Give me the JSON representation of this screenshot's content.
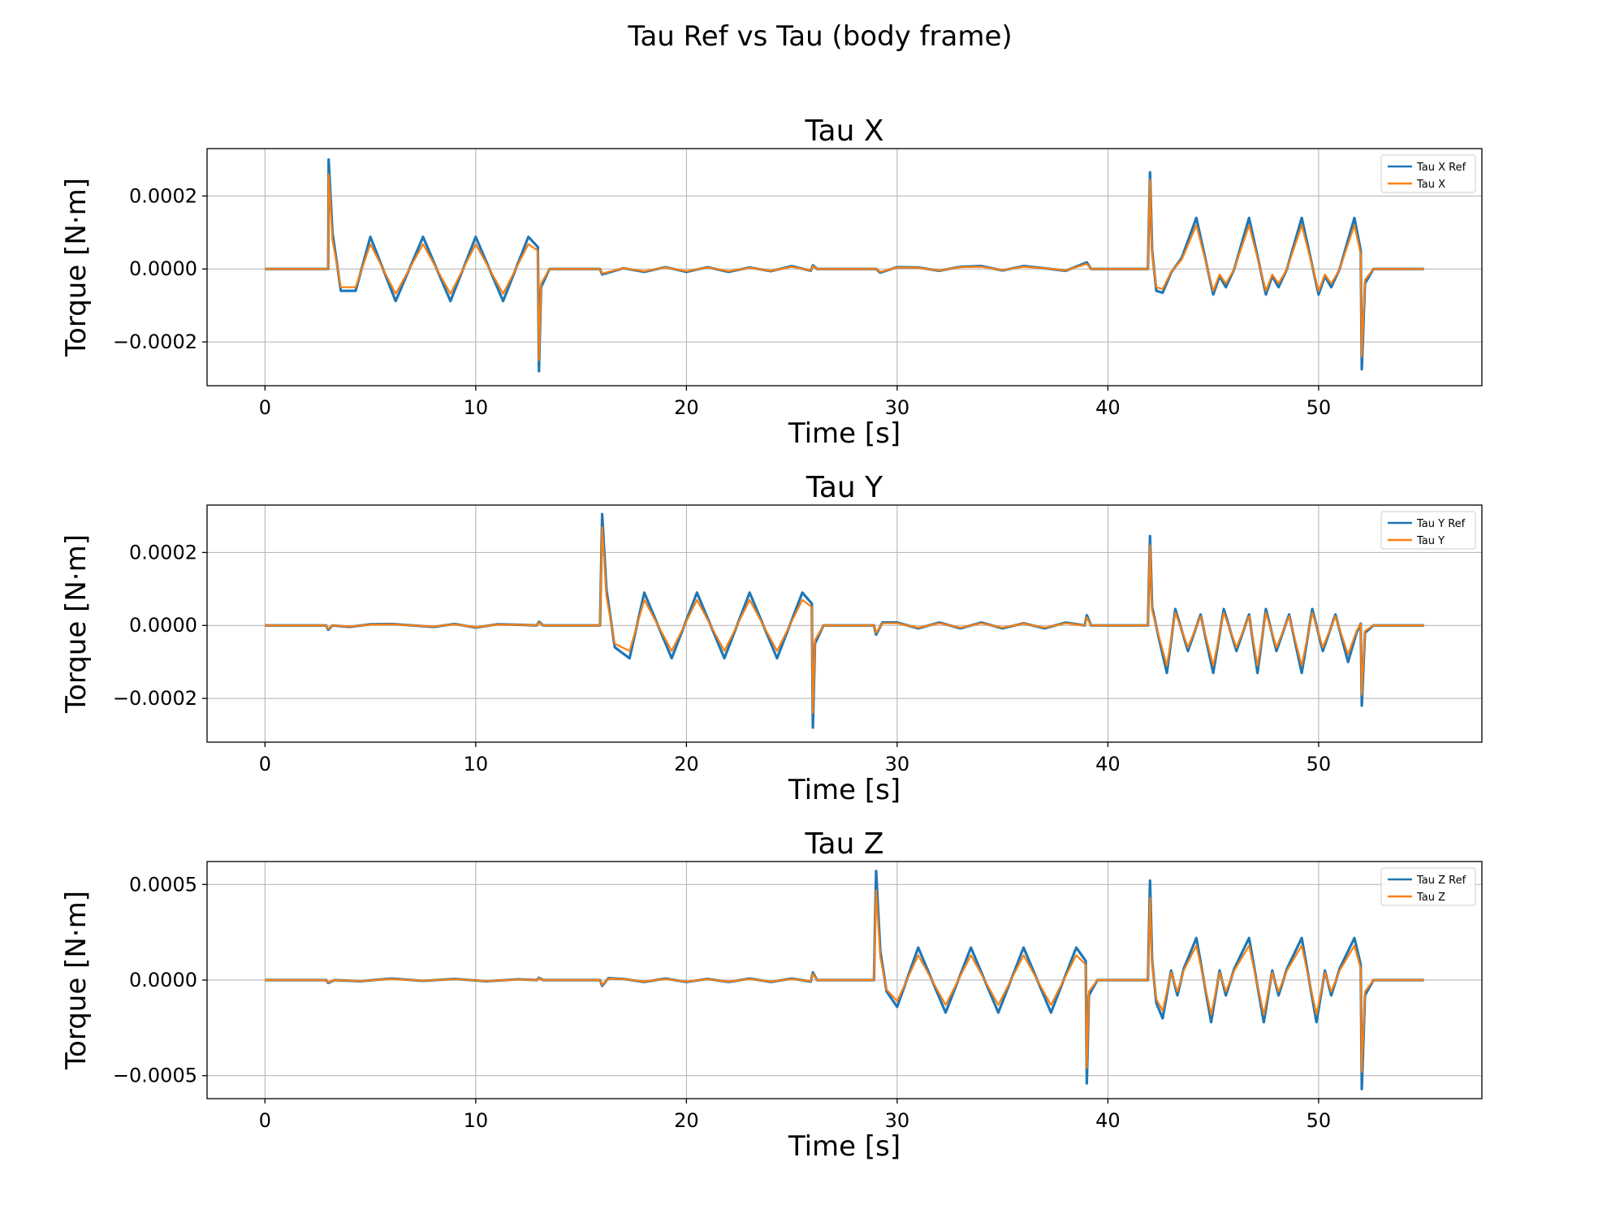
{
  "figure": {
    "suptitle": "Tau Ref vs Tau (body frame)"
  },
  "chart_data": [
    {
      "type": "line",
      "title": "Tau X",
      "xlabel": "Time [s]",
      "ylabel": "Torque [N·m]",
      "xlim": [
        -2.75,
        57.75
      ],
      "ylim": [
        -0.00032,
        0.00033
      ],
      "xticks": [
        0,
        10,
        20,
        30,
        40,
        50
      ],
      "xtick_labels": [
        "0",
        "10",
        "20",
        "30",
        "40",
        "50"
      ],
      "yticks": [
        0.0002,
        0.0,
        -0.0002
      ],
      "ytick_labels": [
        "0.0002",
        "0.0000",
        "−0.0002"
      ],
      "grid": true,
      "legend_location": "upper right",
      "series": [
        {
          "name": "Tau X Ref",
          "color": "#1f77b4",
          "x": [
            0,
            3,
            3.02,
            3.2,
            3.6,
            4.3,
            5,
            6.2,
            7.5,
            8.8,
            10,
            11.3,
            12.5,
            12.95,
            13.0,
            13.1,
            13.5,
            15.9,
            16,
            17,
            18,
            19,
            20,
            21,
            22,
            23,
            24,
            25,
            25.9,
            26,
            26.2,
            27,
            29,
            29.2,
            30,
            31,
            32,
            33,
            34,
            35,
            36,
            37,
            38,
            39,
            39.2,
            41.9,
            42,
            42.1,
            42.3,
            42.6,
            43,
            43.5,
            44.2,
            45,
            45.3,
            45.6,
            46,
            46.7,
            47.5,
            47.8,
            48.1,
            48.5,
            49.2,
            50,
            50.3,
            50.6,
            51,
            51.7,
            52.0,
            52.05,
            52.2,
            52.6,
            55
          ],
          "values": [
            0,
            0,
            0.0003,
            0.0001,
            -6e-05,
            -6e-05,
            8.8e-05,
            -8.8e-05,
            8.8e-05,
            -8.8e-05,
            8.8e-05,
            -8.8e-05,
            8.8e-05,
            6e-05,
            -0.00028,
            -5e-05,
            0,
            0,
            -1.5e-05,
            2e-06,
            -8e-06,
            5e-06,
            -8e-06,
            5e-06,
            -8e-06,
            4e-06,
            -6e-06,
            8e-06,
            -5e-06,
            1e-05,
            0,
            0,
            0,
            -1e-05,
            5e-06,
            4e-06,
            -5e-06,
            6e-06,
            8e-06,
            -4e-06,
            8e-06,
            2e-06,
            -5e-06,
            1.8e-05,
            0,
            0,
            0.000265,
            5e-05,
            -6e-05,
            -6.5e-05,
            -1e-05,
            3e-05,
            0.00014,
            -7e-05,
            -2e-05,
            -5e-05,
            0,
            0.00014,
            -7e-05,
            -2e-05,
            -5e-05,
            0,
            0.00014,
            -7e-05,
            -2e-05,
            -5e-05,
            0,
            0.00014,
            5e-05,
            -0.000275,
            -4e-05,
            0,
            0
          ]
        },
        {
          "name": "Tau X",
          "color": "#ff7f0e",
          "x": [
            0,
            3,
            3.02,
            3.2,
            3.6,
            4.3,
            5,
            6.2,
            7.5,
            8.8,
            10,
            11.3,
            12.5,
            12.95,
            13.0,
            13.1,
            13.5,
            15.9,
            16,
            17,
            18,
            19,
            20,
            21,
            22,
            23,
            24,
            25,
            25.9,
            26,
            26.2,
            27,
            29,
            29.2,
            30,
            31,
            32,
            33,
            34,
            35,
            36,
            37,
            38,
            39,
            39.2,
            41.9,
            42,
            42.1,
            42.3,
            42.6,
            43,
            43.5,
            44.2,
            45,
            45.3,
            45.6,
            46,
            46.7,
            47.5,
            47.8,
            48.1,
            48.5,
            49.2,
            50,
            50.3,
            50.6,
            51,
            51.7,
            52.0,
            52.05,
            52.2,
            52.6,
            55
          ],
          "values": [
            0,
            0,
            0.00026,
            8e-05,
            -5e-05,
            -5e-05,
            6.8e-05,
            -6.8e-05,
            6.8e-05,
            -6.8e-05,
            6.8e-05,
            -6.8e-05,
            6.8e-05,
            5e-05,
            -0.00025,
            -4e-05,
            0,
            0,
            -1.2e-05,
            2e-06,
            -6e-06,
            4e-06,
            -6e-06,
            4e-06,
            -6e-06,
            3e-06,
            -5e-06,
            6e-06,
            -4e-06,
            8e-06,
            0,
            0,
            0,
            -8e-06,
            4e-06,
            3e-06,
            -4e-06,
            5e-06,
            6e-06,
            -3e-06,
            6e-06,
            2e-06,
            -4e-06,
            1.4e-05,
            0,
            0,
            0.000245,
            4e-05,
            -5e-05,
            -5.5e-05,
            -8e-06,
            2.5e-05,
            0.00012,
            -6e-05,
            -1.5e-05,
            -4e-05,
            0,
            0.00012,
            -6e-05,
            -1.5e-05,
            -4e-05,
            0,
            0.00012,
            -6e-05,
            -1.5e-05,
            -4e-05,
            0,
            0.00012,
            4e-05,
            -0.00024,
            -3e-05,
            0,
            0
          ]
        }
      ]
    },
    {
      "type": "line",
      "title": "Tau Y",
      "xlabel": "Time [s]",
      "ylabel": "Torque [N·m]",
      "xlim": [
        -2.75,
        57.75
      ],
      "ylim": [
        -0.00032,
        0.00033
      ],
      "xticks": [
        0,
        10,
        20,
        30,
        40,
        50
      ],
      "xtick_labels": [
        "0",
        "10",
        "20",
        "30",
        "40",
        "50"
      ],
      "yticks": [
        0.0002,
        0.0,
        -0.0002
      ],
      "ytick_labels": [
        "0.0002",
        "0.0000",
        "−0.0002"
      ],
      "grid": true,
      "legend_location": "upper right",
      "series": [
        {
          "name": "Tau Y Ref",
          "color": "#1f77b4",
          "x": [
            0,
            2.9,
            3,
            3.2,
            4,
            5,
            6,
            7,
            8,
            9,
            10,
            11,
            12,
            12.9,
            13,
            13.2,
            15.9,
            16,
            16.2,
            16.6,
            17.3,
            18,
            19.3,
            20.5,
            21.8,
            23,
            24.3,
            25.5,
            25.95,
            26.0,
            26.1,
            26.5,
            28.9,
            29,
            29.3,
            30,
            31,
            32,
            33,
            34,
            35,
            36,
            37,
            38,
            38.9,
            39,
            39.2,
            41.9,
            42,
            42.1,
            42.4,
            42.8,
            43.2,
            43.8,
            44.4,
            45,
            45.5,
            46.1,
            46.7,
            47.1,
            47.5,
            48,
            48.6,
            49.2,
            49.7,
            50.2,
            50.8,
            51.4,
            51.8,
            52.0,
            52.05,
            52.2,
            52.6,
            55
          ],
          "values": [
            0,
            0,
            -1.2e-05,
            0,
            -4e-06,
            3e-06,
            4e-06,
            0,
            -4e-06,
            4e-06,
            -6e-06,
            3e-06,
            2e-06,
            0,
            1e-05,
            0,
            0,
            0.000305,
            0.0001,
            -6e-05,
            -9e-05,
            9e-05,
            -9e-05,
            9e-05,
            -9e-05,
            9e-05,
            -9e-05,
            9e-05,
            6e-05,
            -0.00028,
            -5e-05,
            0,
            0,
            -2.5e-05,
            8e-06,
            8e-06,
            -8e-06,
            8e-06,
            -8e-06,
            8e-06,
            -8e-06,
            6e-06,
            -8e-06,
            8e-06,
            0,
            2.8e-05,
            0,
            0,
            0.000245,
            5e-05,
            -3e-05,
            -0.00013,
            4.5e-05,
            -7e-05,
            3e-05,
            -0.00013,
            4.5e-05,
            -7e-05,
            3e-05,
            -0.00013,
            4.5e-05,
            -7e-05,
            3e-05,
            -0.00013,
            4.5e-05,
            -7e-05,
            3e-05,
            -0.0001,
            -2e-05,
            5e-06,
            -0.00022,
            -2e-05,
            0,
            0
          ]
        },
        {
          "name": "Tau Y",
          "color": "#ff7f0e",
          "x": [
            0,
            2.9,
            3,
            3.2,
            4,
            5,
            6,
            7,
            8,
            9,
            10,
            11,
            12,
            12.9,
            13,
            13.2,
            15.9,
            16,
            16.2,
            16.6,
            17.3,
            18,
            19.3,
            20.5,
            21.8,
            23,
            24.3,
            25.5,
            25.95,
            26.0,
            26.1,
            26.5,
            28.9,
            29,
            29.3,
            30,
            31,
            32,
            33,
            34,
            35,
            36,
            37,
            38,
            38.9,
            39,
            39.2,
            41.9,
            42,
            42.1,
            42.4,
            42.8,
            43.2,
            43.8,
            44.4,
            45,
            45.5,
            46.1,
            46.7,
            47.1,
            47.5,
            48,
            48.6,
            49.2,
            49.7,
            50.2,
            50.8,
            51.4,
            51.8,
            52.0,
            52.05,
            52.2,
            52.6,
            55
          ],
          "values": [
            0,
            0,
            -1e-05,
            0,
            -3e-06,
            2e-06,
            3e-06,
            0,
            -3e-06,
            3e-06,
            -5e-06,
            2e-06,
            2e-06,
            0,
            8e-06,
            0,
            0,
            0.00027,
            8e-05,
            -5e-05,
            -7e-05,
            7e-05,
            -7e-05,
            7e-05,
            -7e-05,
            7e-05,
            -7e-05,
            7e-05,
            5e-05,
            -0.00024,
            -4e-05,
            0,
            0,
            -2e-05,
            6e-06,
            6e-06,
            -6e-06,
            6e-06,
            -6e-06,
            6e-06,
            -6e-06,
            5e-06,
            -6e-06,
            6e-06,
            0,
            2.2e-05,
            0,
            0,
            0.00022,
            4e-05,
            -2.5e-05,
            -0.00011,
            3.5e-05,
            -6e-05,
            2.5e-05,
            -0.00011,
            3.5e-05,
            -6e-05,
            2.5e-05,
            -0.00011,
            3.5e-05,
            -6e-05,
            2.5e-05,
            -0.00011,
            3.5e-05,
            -6e-05,
            2.5e-05,
            -8e-05,
            -1.5e-05,
            4e-06,
            -0.00019,
            -1.5e-05,
            0,
            0
          ]
        }
      ]
    },
    {
      "type": "line",
      "title": "Tau Z",
      "xlabel": "Time [s]",
      "ylabel": "Torque [N·m]",
      "xlim": [
        -2.75,
        57.75
      ],
      "ylim": [
        -0.00062,
        0.00062
      ],
      "xticks": [
        0,
        10,
        20,
        30,
        40,
        50
      ],
      "xtick_labels": [
        "0",
        "10",
        "20",
        "30",
        "40",
        "50"
      ],
      "yticks": [
        0.0005,
        0.0,
        -0.0005
      ],
      "ytick_labels": [
        "0.0005",
        "0.0000",
        "−0.0005"
      ],
      "grid": true,
      "legend_location": "upper right",
      "series": [
        {
          "name": "Tau Z Ref",
          "color": "#1f77b4",
          "x": [
            0,
            2.9,
            3,
            3.3,
            4.5,
            6,
            7.5,
            9,
            10.5,
            12,
            12.9,
            13,
            13.2,
            15.9,
            16,
            16.3,
            17,
            18,
            19,
            20,
            21,
            22,
            23,
            24,
            25,
            25.9,
            26,
            26.2,
            28.9,
            29,
            29.2,
            29.5,
            30,
            31,
            32.3,
            33.5,
            34.8,
            36,
            37.3,
            38.5,
            38.95,
            39.0,
            39.1,
            39.5,
            41.9,
            42,
            42.1,
            42.3,
            42.6,
            43,
            43.3,
            43.6,
            44.2,
            44.9,
            45.3,
            45.6,
            46,
            46.7,
            47.4,
            47.8,
            48.1,
            48.5,
            49.2,
            49.9,
            50.3,
            50.6,
            51,
            51.7,
            52.0,
            52.05,
            52.2,
            52.6,
            55
          ],
          "values": [
            0,
            0,
            -1.5e-05,
            0,
            -6e-06,
            8e-06,
            -4e-06,
            6e-06,
            -6e-06,
            4e-06,
            0,
            1.2e-05,
            0,
            0,
            -3e-05,
            1e-05,
            6e-06,
            -1e-05,
            8e-06,
            -1e-05,
            6e-06,
            -1e-05,
            8e-06,
            -1e-05,
            8e-06,
            -8e-06,
            4e-05,
            0,
            0,
            0.00057,
            0.00015,
            -6e-05,
            -0.00014,
            0.00017,
            -0.00017,
            0.00017,
            -0.00017,
            0.00017,
            -0.00017,
            0.00017,
            0.0001,
            -0.00054,
            -8e-05,
            0,
            0,
            0.00052,
            0.0001,
            -0.00012,
            -0.0002,
            5e-05,
            -8e-05,
            6e-05,
            0.00022,
            -0.00022,
            5e-05,
            -8e-05,
            6e-05,
            0.00022,
            -0.00022,
            5e-05,
            -8e-05,
            6e-05,
            0.00022,
            -0.00022,
            5e-05,
            -8e-05,
            6e-05,
            0.00022,
            8e-05,
            -0.00057,
            -8e-05,
            0,
            0
          ]
        },
        {
          "name": "Tau Z",
          "color": "#ff7f0e",
          "x": [
            0,
            2.9,
            3,
            3.3,
            4.5,
            6,
            7.5,
            9,
            10.5,
            12,
            12.9,
            13,
            13.2,
            15.9,
            16,
            16.3,
            17,
            18,
            19,
            20,
            21,
            22,
            23,
            24,
            25,
            25.9,
            26,
            26.2,
            28.9,
            29,
            29.2,
            29.5,
            30,
            31,
            32.3,
            33.5,
            34.8,
            36,
            37.3,
            38.5,
            38.95,
            39.0,
            39.1,
            39.5,
            41.9,
            42,
            42.1,
            42.3,
            42.6,
            43,
            43.3,
            43.6,
            44.2,
            44.9,
            45.3,
            45.6,
            46,
            46.7,
            47.4,
            47.8,
            48.1,
            48.5,
            49.2,
            49.9,
            50.3,
            50.6,
            51,
            51.7,
            52.0,
            52.05,
            52.2,
            52.6,
            55
          ],
          "values": [
            0,
            0,
            -1.2e-05,
            0,
            -5e-06,
            6e-06,
            -3e-06,
            5e-06,
            -5e-06,
            3e-06,
            0,
            1e-05,
            0,
            0,
            -2.5e-05,
            8e-06,
            5e-06,
            -8e-06,
            6e-06,
            -8e-06,
            5e-06,
            -8e-06,
            6e-06,
            -8e-06,
            6e-06,
            -6e-06,
            3.3e-05,
            0,
            0,
            0.00047,
            0.00012,
            -5e-05,
            -0.00011,
            0.00013,
            -0.00013,
            0.00013,
            -0.00013,
            0.00013,
            -0.00013,
            0.00013,
            8e-05,
            -0.00046,
            -6e-05,
            0,
            0,
            0.00043,
            8e-05,
            -0.0001,
            -0.00016,
            4e-05,
            -6e-05,
            5e-05,
            0.00018,
            -0.00018,
            4e-05,
            -6e-05,
            5e-05,
            0.00018,
            -0.00018,
            4e-05,
            -6e-05,
            5e-05,
            0.00018,
            -0.00018,
            4e-05,
            -6e-05,
            5e-05,
            0.00018,
            6e-05,
            -0.00048,
            -6e-05,
            0,
            0
          ]
        }
      ]
    }
  ]
}
